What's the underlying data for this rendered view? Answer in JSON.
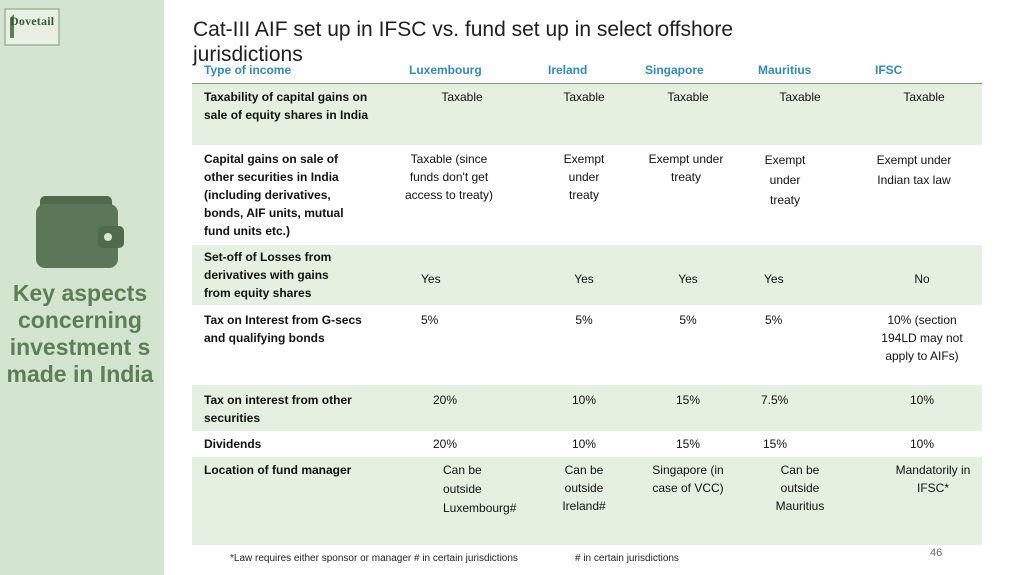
{
  "brand": {
    "logo_text": "Dovetail"
  },
  "title": "Cat-III AIF set up in IFSC vs. fund set up in select offshore jurisdictions",
  "side_title": "Key aspects concerning investment s made in India",
  "table": {
    "headers": [
      "Type of income",
      "Luxembourg",
      "Ireland",
      "Singapore",
      "Mauritius",
      "IFSC"
    ],
    "rows": [
      {
        "label": "Taxability of capital gains on sale of equity shares in India",
        "cells": [
          "Taxable",
          "Taxable",
          "Taxable",
          "Taxable",
          "Taxable"
        ]
      },
      {
        "label": "Capital gains on sale of other securities in India (including derivatives, bonds, AIF units, mutual fund units etc.)",
        "cells": [
          "Taxable (since funds don't get access to treaty)",
          "Exempt under treaty",
          "Exempt under treaty",
          "Exempt under treaty",
          "Exempt under Indian tax law"
        ]
      },
      {
        "label": "Set-off of Losses from derivatives with gains from equity shares",
        "cells": [
          "Yes",
          "Yes",
          "Yes",
          "Yes",
          "No"
        ]
      },
      {
        "label": "Tax on Interest from G-secs and qualifying bonds",
        "cells": [
          "5%",
          "5%",
          "5%",
          "5%",
          "10% (section 194LD may not apply to AIFs)"
        ]
      },
      {
        "label": "Tax on interest from other securities",
        "cells": [
          "20%",
          "10%",
          "15%",
          "7.5%",
          "10%"
        ]
      },
      {
        "label": "Dividends",
        "cells": [
          "20%",
          "10%",
          "15%",
          "15%",
          "10%"
        ]
      },
      {
        "label": "Location of fund manager",
        "cells": [
          "Can be outside Luxembourg#",
          "Can be outside Ireland#",
          "Singapore (in case of VCC)",
          "Can be outside Mauritius",
          "Mandatorily in IFSC*"
        ]
      }
    ]
  },
  "footnote_1": "*Law requires either sponsor or manager # in certain jurisdictions",
  "footnote_2": "# in certain jurisdictions",
  "page_number": "46",
  "colors": {
    "sidebar": "#d3e5cf",
    "accent_header": "#2e8bc0",
    "side_title": "#5d7f55",
    "row_shade": "#e5f0e1"
  },
  "icons": {
    "logo": "dovetail-logo-icon",
    "wallet": "wallet-icon"
  }
}
